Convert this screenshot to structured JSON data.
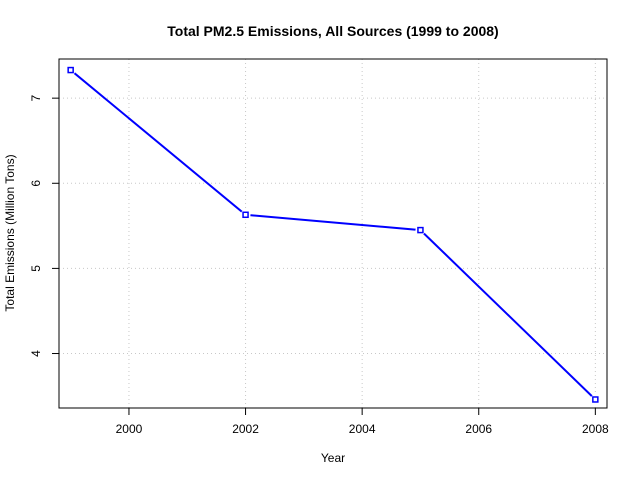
{
  "chart_data": {
    "type": "line",
    "title": "Total PM2.5 Emissions, All Sources (1999 to 2008)",
    "xlabel": "Year",
    "ylabel": "Total Emissions (Million Tons)",
    "xlim": [
      1998.8,
      2008.2
    ],
    "ylim": [
      3.36,
      7.46
    ],
    "x_ticks": [
      2000,
      2002,
      2004,
      2006,
      2008
    ],
    "y_ticks": [
      4,
      5,
      6,
      7
    ],
    "grid": true,
    "line_color": "#0000ff",
    "series": [
      {
        "x": [
          1999,
          2002,
          2005,
          2008
        ],
        "values": [
          7.33,
          5.63,
          5.45,
          3.46
        ]
      }
    ]
  }
}
